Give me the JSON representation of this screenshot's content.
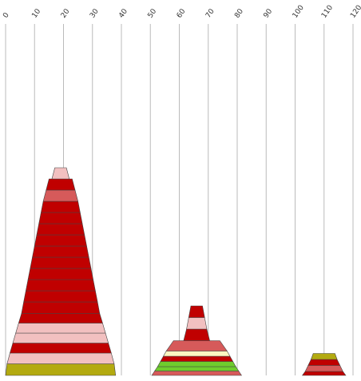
{
  "chart_data": {
    "type": "stacked-pyramid",
    "x_ticks": [
      0,
      10,
      20,
      30,
      40,
      50,
      60,
      70,
      80,
      90,
      100,
      110,
      120
    ],
    "xlim": [
      0,
      120
    ],
    "grid": true,
    "colors": {
      "dark_red": "#c00000",
      "medium_red": "#d65a5a",
      "light_pink": "#f2c0c0",
      "olive": "#b3aa10",
      "lime": "#6fcc2d",
      "pale_yellow": "#fcf5c0",
      "grid": "#bbbbbb",
      "edge": "#444444"
    },
    "groups": [
      {
        "center": 19,
        "slices": [
          {
            "top_width": 37,
            "bottom_width": 38,
            "color": "olive"
          },
          {
            "top_width": 35,
            "bottom_width": 37,
            "color": "light_pink"
          },
          {
            "top_width": 33,
            "bottom_width": 35,
            "color": "dark_red"
          },
          {
            "top_width": 31,
            "bottom_width": 33,
            "color": "light_pink"
          },
          {
            "top_width": 29,
            "bottom_width": 31,
            "color": "light_pink"
          },
          {
            "top_width": 27,
            "bottom_width": 29,
            "color": "dark_red"
          },
          {
            "top_width": 25.5,
            "bottom_width": 27,
            "color": "dark_red"
          },
          {
            "top_width": 24,
            "bottom_width": 25.5,
            "color": "dark_red"
          },
          {
            "top_width": 22.5,
            "bottom_width": 24,
            "color": "dark_red"
          },
          {
            "top_width": 21,
            "bottom_width": 22.5,
            "color": "dark_red"
          },
          {
            "top_width": 19.5,
            "bottom_width": 21,
            "color": "dark_red"
          },
          {
            "top_width": 18,
            "bottom_width": 19.5,
            "color": "dark_red"
          },
          {
            "top_width": 16.5,
            "bottom_width": 18,
            "color": "dark_red"
          },
          {
            "top_width": 15,
            "bottom_width": 16.5,
            "color": "dark_red"
          },
          {
            "top_width": 13.5,
            "bottom_width": 15,
            "color": "dark_red"
          },
          {
            "top_width": 12,
            "bottom_width": 13.5,
            "color": "dark_red"
          },
          {
            "top_width": 10,
            "bottom_width": 12,
            "color": "medium_red"
          },
          {
            "top_width": 8,
            "bottom_width": 10,
            "color": "dark_red"
          },
          {
            "top_width": 4,
            "bottom_width": 6,
            "color": "light_pink"
          }
        ]
      },
      {
        "center": 66,
        "slices": [
          {
            "top_width": 29,
            "bottom_width": 31,
            "color": "medium_red"
          },
          {
            "top_width": 27,
            "bottom_width": 29,
            "color": "lime"
          },
          {
            "top_width": 25,
            "bottom_width": 27,
            "color": "lime"
          },
          {
            "top_width": 23,
            "bottom_width": 25,
            "color": "dark_red"
          },
          {
            "top_width": 21,
            "bottom_width": 23,
            "color": "pale_yellow"
          },
          {
            "top_width": 16,
            "bottom_width": 21,
            "color": "medium_red"
          },
          {
            "top_width": 7,
            "bottom_width": 9,
            "color": "dark_red"
          },
          {
            "top_width": 5.5,
            "bottom_width": 7,
            "color": "light_pink"
          },
          {
            "top_width": 4,
            "bottom_width": 5.5,
            "color": "dark_red"
          }
        ]
      },
      {
        "center": 110,
        "slices": [
          {
            "top_width": 13,
            "bottom_width": 15,
            "color": "dark_red"
          },
          {
            "top_width": 11,
            "bottom_width": 13,
            "color": "medium_red"
          },
          {
            "top_width": 9,
            "bottom_width": 11,
            "color": "dark_red"
          },
          {
            "top_width": 7.5,
            "bottom_width": 9,
            "color": "olive"
          }
        ]
      }
    ]
  }
}
